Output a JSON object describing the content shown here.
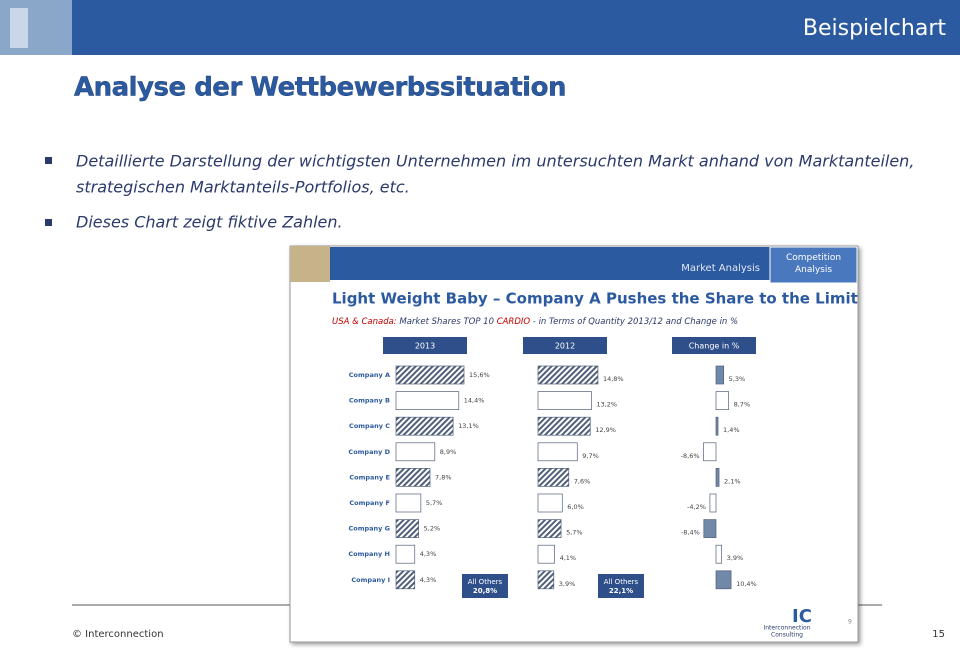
{
  "header": {
    "label": "Beispielchart"
  },
  "title": "Analyse der Wettbewerbssituation",
  "bullets": [
    "Detaillierte Darstellung der wichtigsten Unternehmen im untersuchten Markt anhand von Marktanteilen,",
    "strategischen Marktanteils-Portfolios, etc.",
    "Dieses Chart zeigt fiktive Zahlen."
  ],
  "footer": {
    "left": "© Interconnection",
    "page": "15"
  },
  "slide": {
    "section": "Market Analysis",
    "tab": "Competition Analysis",
    "title": "Light Weight Baby – Company A Pushes the Share to the Limit",
    "subtitle": [
      "USA & Canada:",
      "Market Shares TOP 10",
      "CARDIO",
      "- in Terms of Quantity 2013/12 and Change in %"
    ],
    "logo": "IC",
    "company": "Interconnection",
    "company2": "Consulting",
    "page": "9"
  },
  "chart_data": [
    {
      "type": "bar",
      "title": "2013",
      "categories": [
        "Company A",
        "Company B",
        "Company C",
        "Company D",
        "Company E",
        "Company F",
        "Company G",
        "Company H",
        "Company I"
      ],
      "values": [
        15.6,
        14.4,
        13.1,
        8.9,
        7.8,
        5.7,
        5.2,
        4.3,
        4.3
      ],
      "value_labels": [
        "15,6%",
        "14,4%",
        "13,1%",
        "8,9%",
        "7,8%",
        "5,7%",
        "5,2%",
        "4,3%",
        "4,3%"
      ],
      "others": {
        "label": "All Others",
        "value": 20.8,
        "value_label": "20,8%"
      },
      "color": "#51607a"
    },
    {
      "type": "bar",
      "title": "2012",
      "values": [
        14.8,
        13.2,
        12.9,
        9.7,
        7.6,
        6.0,
        5.7,
        4.1,
        3.9
      ],
      "value_labels": [
        "14,8%",
        "13,2%",
        "12,9%",
        "9,7%",
        "7,6%",
        "6,0%",
        "5,7%",
        "4,1%",
        "3,9%"
      ],
      "others": {
        "label": "All Others",
        "value": 22.1,
        "value_label": "22,1%"
      },
      "color": "#51607a"
    },
    {
      "type": "bar",
      "title": "Change in %",
      "values": [
        5.3,
        8.7,
        1.4,
        -8.6,
        2.1,
        -4.2,
        -8.4,
        3.9,
        10.4
      ],
      "value_labels": [
        "5,3%",
        "8,7%",
        "1,4%",
        "-8,6%",
        "2,1%",
        "-4,2%",
        "-8,4%",
        "3,9%",
        "10,4%"
      ],
      "color": "#7189a8"
    }
  ]
}
